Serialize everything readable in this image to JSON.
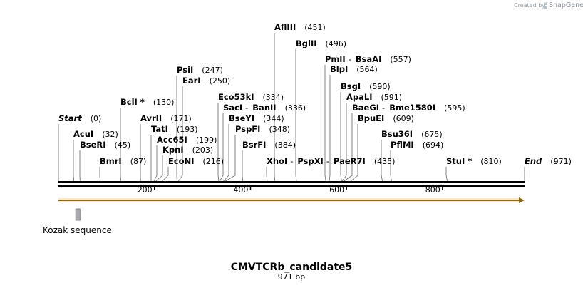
{
  "credit": {
    "prefix": "Created by",
    "brand": "SnapGene"
  },
  "sequence": {
    "name": "CMVTCRb_candidate5",
    "length_label": "971 bp",
    "length": 971
  },
  "terminals": [
    {
      "name": "Start",
      "position": 0,
      "position_label": "(0)"
    },
    {
      "name": "End",
      "position": 971,
      "position_label": "(971)"
    }
  ],
  "sites": [
    {
      "names": [
        "AflIII"
      ],
      "position": 451,
      "position_label": "(451)"
    },
    {
      "names": [
        "BglII"
      ],
      "position": 496,
      "position_label": "(496)"
    },
    {
      "names": [
        "PmlI",
        "BsaAI"
      ],
      "position": 557,
      "position_label": "(557)"
    },
    {
      "names": [
        "BlpI"
      ],
      "position": 564,
      "position_label": "(564)"
    },
    {
      "names": [
        "PsiI"
      ],
      "position": 247,
      "position_label": "(247)"
    },
    {
      "names": [
        "EarI"
      ],
      "position": 250,
      "position_label": "(250)"
    },
    {
      "names": [
        "BsgI"
      ],
      "position": 590,
      "position_label": "(590)"
    },
    {
      "names": [
        "Eco53kI"
      ],
      "position": 334,
      "position_label": "(334)"
    },
    {
      "names": [
        "ApaLI"
      ],
      "position": 591,
      "position_label": "(591)"
    },
    {
      "names": [
        "BclI *"
      ],
      "position": 130,
      "position_label": "(130)"
    },
    {
      "names": [
        "SacI",
        "BanII"
      ],
      "position": 336,
      "position_label": "(336)"
    },
    {
      "names": [
        "BaeGI",
        "Bme1580I"
      ],
      "position": 595,
      "position_label": "(595)"
    },
    {
      "names": [
        "AvrII"
      ],
      "position": 171,
      "position_label": "(171)"
    },
    {
      "names": [
        "BseYI"
      ],
      "position": 344,
      "position_label": "(344)"
    },
    {
      "names": [
        "BpuEI"
      ],
      "position": 609,
      "position_label": "(609)"
    },
    {
      "names": [
        "TatI"
      ],
      "position": 193,
      "position_label": "(193)"
    },
    {
      "names": [
        "PspFI"
      ],
      "position": 348,
      "position_label": "(348)"
    },
    {
      "names": [
        "AcuI"
      ],
      "position": 32,
      "position_label": "(32)"
    },
    {
      "names": [
        "Bsu36I"
      ],
      "position": 675,
      "position_label": "(675)"
    },
    {
      "names": [
        "Acc65I"
      ],
      "position": 199,
      "position_label": "(199)"
    },
    {
      "names": [
        "BseRI"
      ],
      "position": 45,
      "position_label": "(45)"
    },
    {
      "names": [
        "BsrFI"
      ],
      "position": 384,
      "position_label": "(384)"
    },
    {
      "names": [
        "PflMI"
      ],
      "position": 694,
      "position_label": "(694)"
    },
    {
      "names": [
        "KpnI"
      ],
      "position": 203,
      "position_label": "(203)"
    },
    {
      "names": [
        "BmrI"
      ],
      "position": 87,
      "position_label": "(87)"
    },
    {
      "names": [
        "EcoNI"
      ],
      "position": 216,
      "position_label": "(216)"
    },
    {
      "names": [
        "XhoI",
        "PspXI",
        "PaeR7I"
      ],
      "position": 435,
      "position_label": "(435)"
    },
    {
      "names": [
        "StuI *"
      ],
      "position": 810,
      "position_label": "(810)"
    }
  ],
  "ruler": {
    "ticks": [
      200,
      400,
      600,
      800
    ],
    "tick_labels": [
      "200",
      "400",
      "600",
      "800"
    ]
  },
  "features": [
    {
      "name": "Kozak sequence",
      "start": 36,
      "end": 45,
      "color": "#a9a9b0"
    }
  ],
  "orf": {
    "start": 0,
    "end": 971,
    "direction": "forward",
    "color": "#f5b041"
  }
}
